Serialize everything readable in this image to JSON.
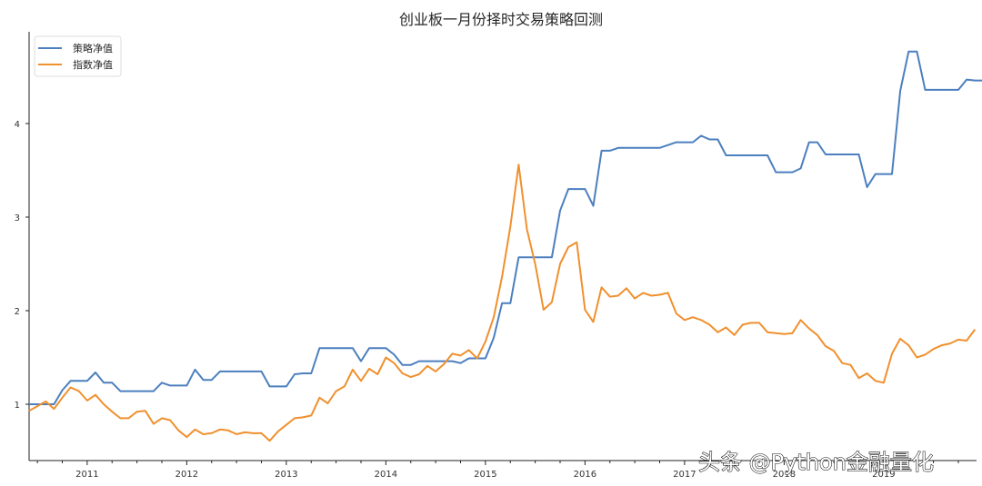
{
  "chart_data": {
    "type": "line",
    "title": "创业板一月份择时交易策略回测",
    "xlabel": "",
    "ylabel": "",
    "ylim": [
      0.4,
      4.95
    ],
    "xlim": [
      "2010-06",
      "2019-11"
    ],
    "grid": false,
    "legend_position": "upper left",
    "x_tick_labels": [
      "2011",
      "2012",
      "2013",
      "2014",
      "2015",
      "2016",
      "2017",
      "2018",
      "2019"
    ],
    "y_tick_labels": [
      "1",
      "2",
      "3",
      "4"
    ],
    "y_ticks": [
      1,
      2,
      3,
      4
    ],
    "x_start": "2010-06",
    "x_step": "1 month",
    "series": [
      {
        "name": "策略净值",
        "color": "#4c7fbf",
        "values": [
          1.0,
          1.0,
          1.0,
          1.0,
          1.15,
          1.25,
          1.25,
          1.25,
          1.34,
          1.23,
          1.23,
          1.14,
          1.14,
          1.14,
          1.14,
          1.14,
          1.23,
          1.2,
          1.2,
          1.2,
          1.37,
          1.26,
          1.26,
          1.35,
          1.35,
          1.35,
          1.35,
          1.35,
          1.35,
          1.19,
          1.19,
          1.19,
          1.32,
          1.33,
          1.33,
          1.6,
          1.6,
          1.6,
          1.6,
          1.6,
          1.46,
          1.6,
          1.6,
          1.6,
          1.53,
          1.42,
          1.42,
          1.46,
          1.46,
          1.46,
          1.46,
          1.46,
          1.44,
          1.49,
          1.49,
          1.49,
          1.71,
          2.08,
          2.08,
          2.57,
          2.57,
          2.57,
          2.57,
          2.57,
          3.07,
          3.3,
          3.3,
          3.3,
          3.12,
          3.71,
          3.71,
          3.74,
          3.74,
          3.74,
          3.74,
          3.74,
          3.74,
          3.77,
          3.8,
          3.8,
          3.8,
          3.87,
          3.83,
          3.83,
          3.66,
          3.66,
          3.66,
          3.66,
          3.66,
          3.66,
          3.48,
          3.48,
          3.48,
          3.52,
          3.8,
          3.8,
          3.67,
          3.67,
          3.67,
          3.67,
          3.67,
          3.32,
          3.46,
          3.46,
          3.46,
          4.35,
          4.77,
          4.77,
          4.36,
          4.36,
          4.36,
          4.36,
          4.36,
          4.47,
          4.46,
          4.46
        ]
      },
      {
        "name": "指数净值",
        "color": "#f0902e",
        "values": [
          0.93,
          0.98,
          1.03,
          0.95,
          1.07,
          1.18,
          1.14,
          1.04,
          1.1,
          1.0,
          0.92,
          0.85,
          0.85,
          0.92,
          0.93,
          0.79,
          0.85,
          0.83,
          0.72,
          0.65,
          0.73,
          0.68,
          0.69,
          0.73,
          0.72,
          0.68,
          0.7,
          0.69,
          0.69,
          0.61,
          0.71,
          0.78,
          0.85,
          0.86,
          0.88,
          1.07,
          1.01,
          1.14,
          1.19,
          1.37,
          1.25,
          1.38,
          1.32,
          1.5,
          1.44,
          1.33,
          1.29,
          1.32,
          1.41,
          1.35,
          1.43,
          1.54,
          1.52,
          1.58,
          1.49,
          1.67,
          1.93,
          2.36,
          2.9,
          3.56,
          2.87,
          2.5,
          2.01,
          2.09,
          2.5,
          2.68,
          2.73,
          2.01,
          1.88,
          2.25,
          2.15,
          2.16,
          2.24,
          2.13,
          2.19,
          2.16,
          2.17,
          2.19,
          1.97,
          1.9,
          1.93,
          1.9,
          1.85,
          1.77,
          1.82,
          1.74,
          1.85,
          1.87,
          1.87,
          1.77,
          1.76,
          1.75,
          1.76,
          1.9,
          1.81,
          1.74,
          1.62,
          1.57,
          1.44,
          1.42,
          1.28,
          1.33,
          1.25,
          1.23,
          1.54,
          1.7,
          1.63,
          1.5,
          1.53,
          1.59,
          1.63,
          1.65,
          1.69,
          1.68,
          1.8
        ]
      }
    ]
  },
  "watermark": "头条 @Python金融量化"
}
